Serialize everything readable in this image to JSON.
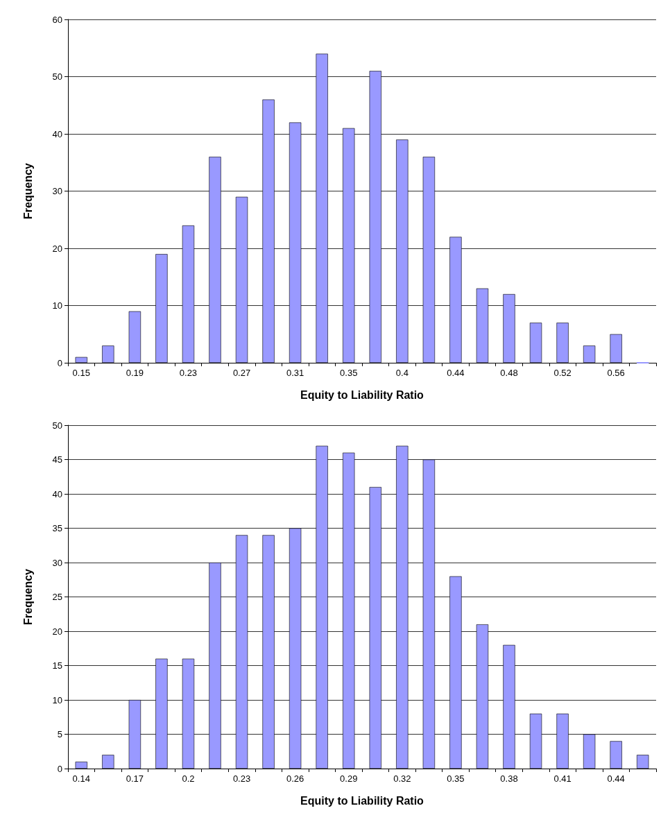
{
  "chart_data": [
    {
      "type": "bar",
      "xlabel": "Equity to Liability Ratio",
      "ylabel": "Frequency",
      "categories": [
        "0.15",
        null,
        "0.19",
        null,
        "0.23",
        null,
        "0.27",
        null,
        "0.31",
        null,
        "0.35",
        null,
        "0.4",
        null,
        "0.44",
        null,
        "0.48",
        null,
        "0.52",
        null,
        "0.56",
        null
      ],
      "values": [
        1,
        3,
        9,
        19,
        24,
        36,
        29,
        46,
        42,
        54,
        41,
        51,
        39,
        36,
        22,
        13,
        12,
        7,
        7,
        3,
        5,
        0
      ],
      "color": "#9999ff",
      "ylim": [
        0,
        60
      ],
      "yticks": [
        0,
        10,
        20,
        30,
        40,
        50,
        60
      ],
      "grid": "y"
    },
    {
      "type": "bar",
      "xlabel": "Equity to Liability Ratio",
      "ylabel": "Frequency",
      "categories": [
        "0.14",
        null,
        "0.17",
        null,
        "0.2",
        null,
        "0.23",
        null,
        "0.26",
        null,
        "0.29",
        null,
        "0.32",
        null,
        "0.35",
        null,
        "0.38",
        null,
        "0.41",
        null,
        "0.44",
        null
      ],
      "values": [
        1,
        2,
        10,
        16,
        16,
        30,
        34,
        34,
        35,
        47,
        46,
        41,
        47,
        45,
        28,
        21,
        18,
        8,
        8,
        5,
        4,
        2
      ],
      "color": "#9999ff",
      "ylim": [
        0,
        50
      ],
      "yticks": [
        0,
        5,
        10,
        15,
        20,
        25,
        30,
        35,
        40,
        45,
        50
      ],
      "grid": "y"
    }
  ]
}
